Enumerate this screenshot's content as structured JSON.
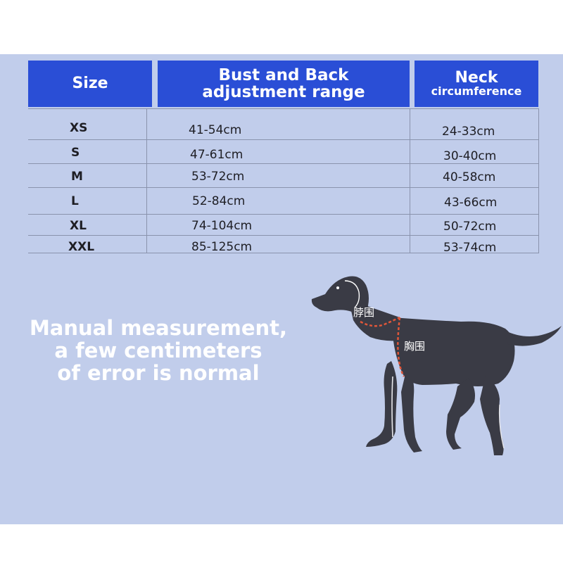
{
  "table": {
    "headers": {
      "size": "Size",
      "bust_line1": "Bust and Back",
      "bust_line2": "adjustment range",
      "neck_line1": "Neck",
      "neck_line2": "circumference"
    },
    "rows": [
      {
        "size": "XS",
        "bust": "41-54cm",
        "neck": "24-33cm"
      },
      {
        "size": "S",
        "bust": "47-61cm",
        "neck": "30-40cm"
      },
      {
        "size": "M",
        "bust": "53-72cm",
        "neck": "40-58cm"
      },
      {
        "size": "L",
        "bust": "52-84cm",
        "neck": "43-66cm"
      },
      {
        "size": "XL",
        "bust": "74-104cm",
        "neck": "50-72cm"
      },
      {
        "size": "XXL",
        "bust": "85-125cm",
        "neck": "53-74cm"
      }
    ]
  },
  "note": {
    "line1": "Manual measurement,",
    "line2": "a few centimeters",
    "line3": "of error is normal"
  },
  "diagram": {
    "neck_label": "脖围",
    "chest_label": "胸围"
  },
  "colors": {
    "header_bg": "#2a4ed6",
    "panel_bg": "#c1cdeb",
    "dog": "#3a3b45",
    "measure_line": "#e0573a"
  }
}
